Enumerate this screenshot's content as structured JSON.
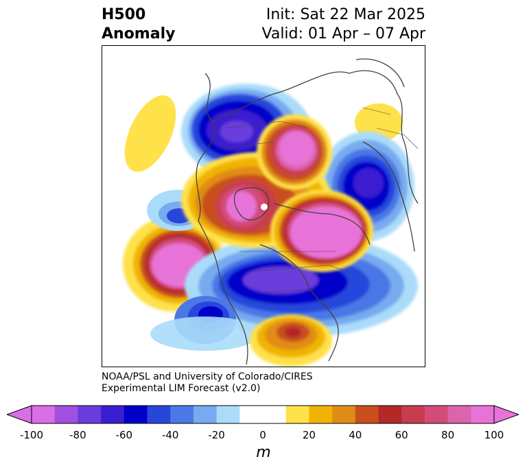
{
  "title": {
    "left_line1": "H500",
    "left_line2": "Anomaly",
    "right_line1": "Init: Sat 22 Mar 2025",
    "right_line2": "Valid: 01 Apr – 07 Apr"
  },
  "credit": {
    "line1": "NOAA/PSL and University of Colorado/CIRES",
    "line2": "Experimental LIM Forecast (v2.0)"
  },
  "colorbar": {
    "unit_label": "m",
    "ticks": [
      "-100",
      "-80",
      "-60",
      "-40",
      "-20",
      "0",
      "20",
      "40",
      "60",
      "80",
      "100"
    ],
    "min_color": "#d96ee6",
    "max_color": "#e873d8",
    "colors": [
      "#d96ee6",
      "#a050e0",
      "#6a3cdc",
      "#3a1fd0",
      "#0000c8",
      "#2846dc",
      "#4a78e6",
      "#78aaf0",
      "#aadcfa",
      "#ffffff",
      "#ffffff",
      "#ffe14a",
      "#f0b400",
      "#e08c14",
      "#c8501e",
      "#b42828",
      "#c83c50",
      "#d24c78",
      "#dc64aa",
      "#e873d8"
    ]
  },
  "map": {
    "projection": "north-polar-stereographic",
    "features": [
      "coastlines",
      "country-borders",
      "state-borders"
    ],
    "anomaly_centers": [
      {
        "sign": "positive",
        "label": "north-pacific-ridge"
      },
      {
        "sign": "positive",
        "label": "arctic-ridge"
      },
      {
        "sign": "positive",
        "label": "siberia-ridge"
      },
      {
        "sign": "positive",
        "label": "north-atlantic-ridge"
      },
      {
        "sign": "positive",
        "label": "southeast-us-ridge"
      },
      {
        "sign": "negative",
        "label": "eurasia-trough"
      },
      {
        "sign": "negative",
        "label": "east-asia-trough"
      },
      {
        "sign": "negative",
        "label": "north-america-trough"
      },
      {
        "sign": "negative",
        "label": "western-us-trough"
      }
    ]
  }
}
